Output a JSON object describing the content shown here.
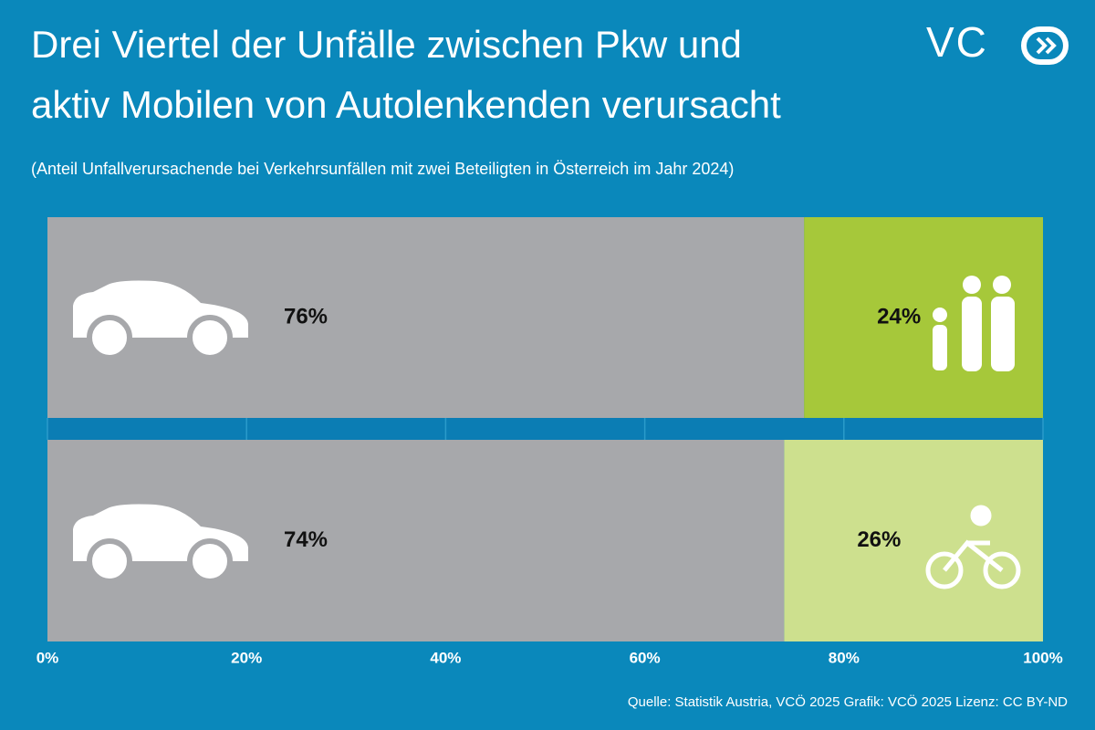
{
  "chart_data": {
    "type": "stacked-bar-horizontal",
    "title": [
      "Drei Viertel der Unfälle zwischen Pkw und",
      "aktiv Mobilen von Autolenkenden verursacht"
    ],
    "subtitle": "(Anteil Unfallverursachende bei Verkehrsunfällen mit zwei Beteiligten in Österreich im Jahr 2024)",
    "logo": "VC",
    "source": "Quelle: Statistik Austria, VCÖ 2025 Grafik: VCÖ 2025 Lizenz: CC BY-ND",
    "categories": [
      null,
      null
    ],
    "series": [
      {
        "color": "#a7a8ab",
        "values": [
          76,
          74
        ],
        "value_labels": [
          "76%",
          "74%"
        ]
      },
      {
        "colors": [
          "#a6c83a",
          "#cde08e"
        ],
        "values": [
          24,
          26
        ],
        "value_labels": [
          "24%",
          "26%"
        ]
      }
    ],
    "xlim": [
      0,
      100
    ],
    "xticks": [
      {
        "value": 0,
        "label": "0%"
      },
      {
        "value": 20,
        "label": "20%"
      },
      {
        "value": 40,
        "label": "40%"
      },
      {
        "value": 60,
        "label": "60%"
      },
      {
        "value": 80,
        "label": "80%"
      },
      {
        "value": 100,
        "label": "100%"
      }
    ],
    "grid": true
  }
}
